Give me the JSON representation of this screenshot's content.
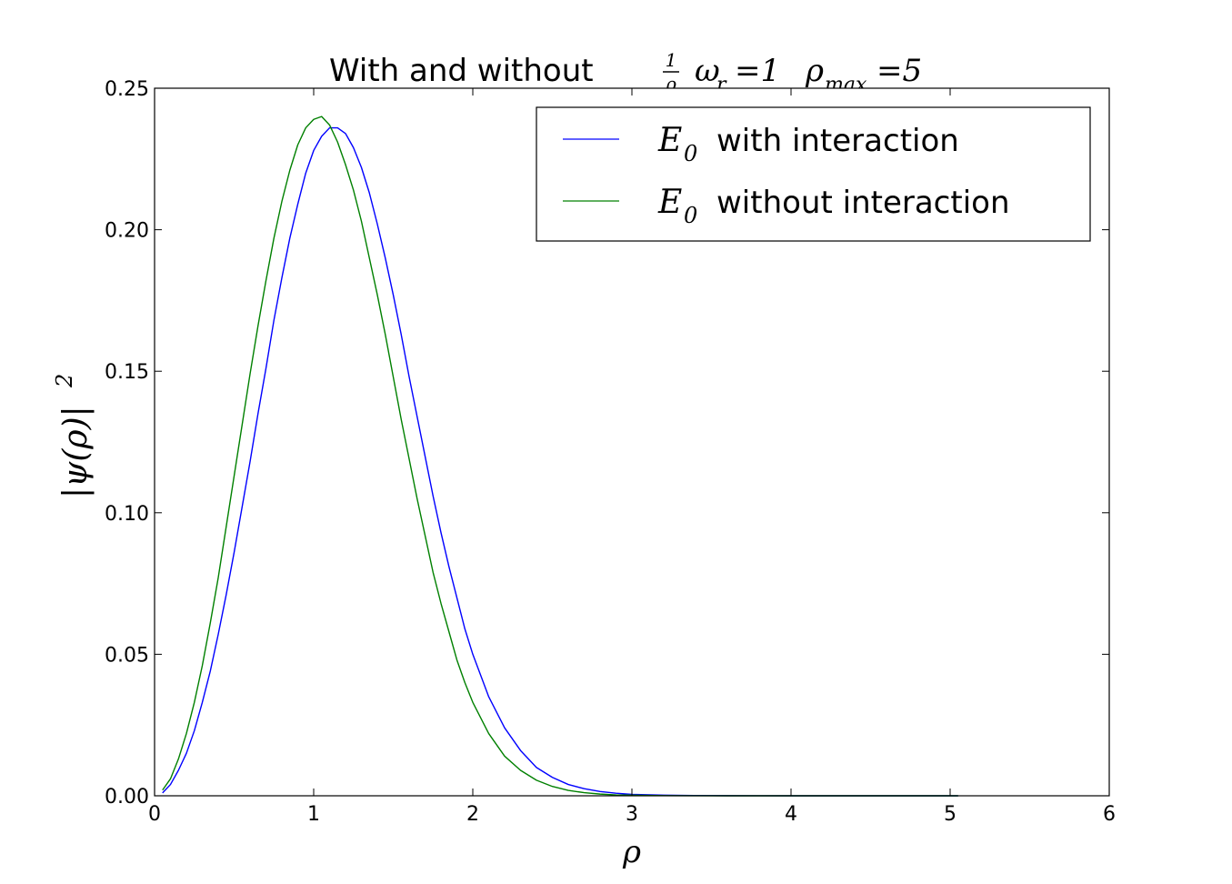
{
  "chart_data": {
    "type": "line",
    "title": {
      "prefix": "With and without",
      "frac_num": "1",
      "frac_den": "ρ",
      "omega": "ω",
      "omega_sub": "r",
      "omega_eq": "=1",
      "rho": "ρ",
      "rho_sub": "max",
      "rho_eq": "=5"
    },
    "xlabel": "ρ",
    "ylabel": {
      "base": "|ψ(ρ)|",
      "sup": "2"
    },
    "xlim": [
      0,
      6
    ],
    "ylim": [
      0,
      0.25
    ],
    "xticks": [
      "0",
      "1",
      "2",
      "3",
      "4",
      "5",
      "6"
    ],
    "yticks": [
      "0.00",
      "0.05",
      "0.10",
      "0.15",
      "0.20",
      "0.25"
    ],
    "legend_position": "top-right",
    "series": [
      {
        "name": "with interaction",
        "legend_math": "E",
        "legend_sub": "0",
        "color": "#0000ff",
        "x": [
          0.05,
          0.1,
          0.15,
          0.2,
          0.25,
          0.3,
          0.35,
          0.4,
          0.45,
          0.5,
          0.55,
          0.6,
          0.65,
          0.7,
          0.75,
          0.8,
          0.85,
          0.9,
          0.95,
          1.0,
          1.05,
          1.1,
          1.15,
          1.2,
          1.25,
          1.3,
          1.35,
          1.4,
          1.45,
          1.5,
          1.55,
          1.6,
          1.65,
          1.7,
          1.75,
          1.8,
          1.85,
          1.9,
          1.95,
          2.0,
          2.1,
          2.2,
          2.3,
          2.4,
          2.5,
          2.6,
          2.7,
          2.8,
          2.9,
          3.0,
          3.2,
          3.4,
          3.6,
          3.8,
          4.0,
          4.5,
          5.05
        ],
        "y": [
          0.001,
          0.004,
          0.009,
          0.015,
          0.023,
          0.033,
          0.044,
          0.057,
          0.071,
          0.086,
          0.102,
          0.118,
          0.135,
          0.151,
          0.168,
          0.183,
          0.197,
          0.209,
          0.22,
          0.228,
          0.233,
          0.236,
          0.236,
          0.234,
          0.229,
          0.222,
          0.213,
          0.202,
          0.19,
          0.177,
          0.163,
          0.148,
          0.134,
          0.12,
          0.106,
          0.093,
          0.081,
          0.07,
          0.059,
          0.05,
          0.035,
          0.024,
          0.016,
          0.01,
          0.0065,
          0.004,
          0.0025,
          0.0015,
          0.0009,
          0.0005,
          0.0002,
          0.0001,
          4e-05,
          1e-05,
          0.0,
          0.0,
          0.0
        ]
      },
      {
        "name": "without interaction",
        "legend_math": "E",
        "legend_sub": "0",
        "color": "#008000",
        "x": [
          0.05,
          0.1,
          0.15,
          0.2,
          0.25,
          0.3,
          0.35,
          0.4,
          0.45,
          0.5,
          0.55,
          0.6,
          0.65,
          0.7,
          0.75,
          0.8,
          0.85,
          0.9,
          0.95,
          1.0,
          1.05,
          1.1,
          1.15,
          1.2,
          1.25,
          1.3,
          1.35,
          1.4,
          1.45,
          1.5,
          1.55,
          1.6,
          1.65,
          1.7,
          1.75,
          1.8,
          1.85,
          1.9,
          1.95,
          2.0,
          2.1,
          2.2,
          2.3,
          2.4,
          2.5,
          2.6,
          2.7,
          2.8,
          2.9,
          3.0,
          3.2,
          3.4,
          3.6,
          3.8,
          4.0,
          4.5,
          5.05
        ],
        "y": [
          0.002,
          0.006,
          0.013,
          0.022,
          0.033,
          0.046,
          0.061,
          0.077,
          0.095,
          0.113,
          0.131,
          0.149,
          0.166,
          0.182,
          0.197,
          0.21,
          0.221,
          0.23,
          0.236,
          0.239,
          0.24,
          0.237,
          0.231,
          0.223,
          0.214,
          0.203,
          0.19,
          0.177,
          0.163,
          0.148,
          0.133,
          0.119,
          0.105,
          0.092,
          0.079,
          0.068,
          0.058,
          0.048,
          0.04,
          0.033,
          0.022,
          0.014,
          0.009,
          0.0055,
          0.0033,
          0.0019,
          0.0011,
          0.0006,
          0.0003,
          0.0002,
          5e-05,
          1e-05,
          0.0,
          0.0,
          0.0,
          0.0,
          0.0
        ]
      }
    ]
  }
}
